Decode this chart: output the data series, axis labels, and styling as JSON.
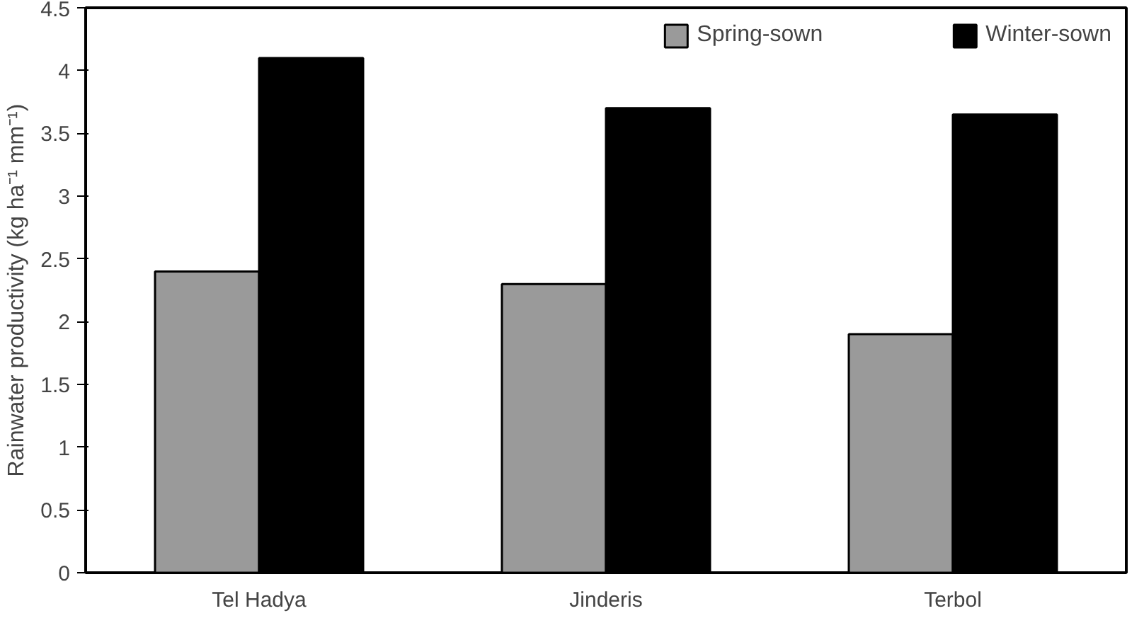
{
  "chart_data": {
    "type": "bar",
    "ylabel": "Rainwater productivity (kg ha⁻¹ mm⁻¹)",
    "categories": [
      "Tel Hadya",
      "Jinderis",
      "Terbol"
    ],
    "series": [
      {
        "name": "Spring-sown",
        "color": "#9a9a9a",
        "values": [
          2.4,
          2.3,
          1.9
        ]
      },
      {
        "name": "Winter-sown",
        "color": "#000000",
        "values": [
          4.1,
          3.7,
          3.65
        ]
      }
    ],
    "ylim": [
      0,
      4.5
    ],
    "yticks": [
      0,
      0.5,
      1,
      1.5,
      2,
      2.5,
      3,
      3.5,
      4,
      4.5
    ],
    "grid": false,
    "legend": "top right"
  }
}
